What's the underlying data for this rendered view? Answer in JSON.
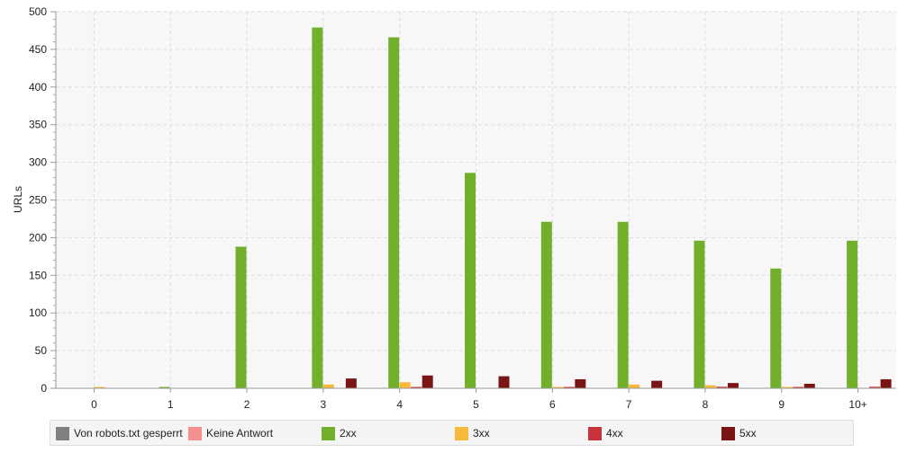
{
  "chart_data": {
    "type": "bar",
    "title": "",
    "xlabel": "",
    "ylabel": "URLs",
    "ylim": [
      0,
      500
    ],
    "y_ticks": [
      0,
      50,
      100,
      150,
      200,
      250,
      300,
      350,
      400,
      450,
      500
    ],
    "grid": true,
    "legend_position": "bottom",
    "categories": [
      "0",
      "1",
      "2",
      "3",
      "4",
      "5",
      "6",
      "7",
      "8",
      "9",
      "10+"
    ],
    "series": [
      {
        "name": "Von robots.txt gesperrt",
        "color": "#808080",
        "values": [
          0,
          0,
          0,
          0,
          0,
          0,
          0,
          0,
          0,
          0,
          0
        ]
      },
      {
        "name": "Keine Antwort",
        "color": "#f59090",
        "values": [
          0,
          0,
          0,
          0,
          0,
          0,
          0,
          0,
          0,
          0,
          0
        ]
      },
      {
        "name": "2xx",
        "color": "#72b02c",
        "values": [
          0,
          1,
          188,
          479,
          466,
          286,
          221,
          221,
          196,
          159,
          196
        ]
      },
      {
        "name": "3xx",
        "color": "#f8b93a",
        "values": [
          1,
          0,
          0,
          5,
          8,
          0,
          1,
          5,
          4,
          1,
          0
        ]
      },
      {
        "name": "4xx",
        "color": "#c8323a",
        "values": [
          0,
          0,
          0,
          0,
          1,
          0,
          1,
          0,
          2,
          1,
          2
        ]
      },
      {
        "name": "5xx",
        "color": "#7a1515",
        "values": [
          0,
          0,
          0,
          13,
          17,
          16,
          12,
          10,
          7,
          6,
          12
        ]
      }
    ]
  }
}
